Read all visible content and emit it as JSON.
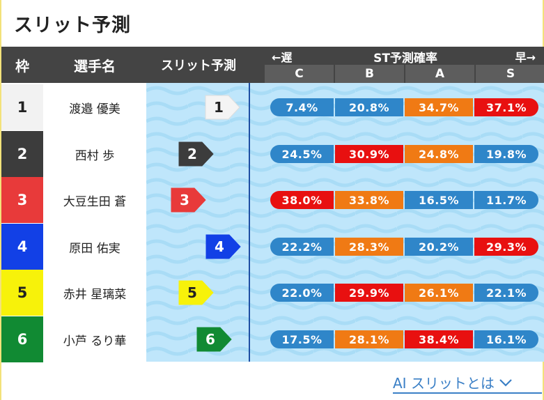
{
  "title": "スリット予測",
  "header": {
    "waku": "枠",
    "name": "選手名",
    "slit": "スリット予測",
    "st_left": "←遅",
    "st_center": "ST予測確率",
    "st_right": "早→",
    "cols": [
      "C",
      "B",
      "A",
      "S"
    ]
  },
  "colors": {
    "blue": "#2f86c9",
    "orange": "#f07a14",
    "red": "#e81010"
  },
  "rows": [
    {
      "waku": "1",
      "name": "渡邉 優美",
      "badge": "1",
      "waku_bg": "#f2f2f2",
      "waku_fg": "#222222",
      "C": "7.4%",
      "B": "20.8%",
      "A": "34.7%",
      "S": "37.1%"
    },
    {
      "waku": "2",
      "name": "西村 歩",
      "badge": "2",
      "waku_bg": "#3c3c3c",
      "waku_fg": "#ffffff",
      "C": "24.5%",
      "B": "30.9%",
      "A": "24.8%",
      "S": "19.8%"
    },
    {
      "waku": "3",
      "name": "大豆生田 蒼",
      "badge": "3",
      "waku_bg": "#e83a3a",
      "waku_fg": "#ffffff",
      "C": "38.0%",
      "B": "33.8%",
      "A": "16.5%",
      "S": "11.7%"
    },
    {
      "waku": "4",
      "name": "原田 佑実",
      "badge": "4",
      "waku_bg": "#1240e6",
      "waku_fg": "#ffffff",
      "C": "22.2%",
      "B": "28.3%",
      "A": "20.2%",
      "S": "29.3%"
    },
    {
      "waku": "5",
      "name": "赤井 星璃菜",
      "badge": "5",
      "waku_bg": "#f7f20a",
      "waku_fg": "#222222",
      "C": "22.0%",
      "B": "29.9%",
      "A": "26.1%",
      "S": "22.1%"
    },
    {
      "waku": "6",
      "name": "小芦 るり華",
      "badge": "6",
      "waku_bg": "#118a33",
      "waku_fg": "#ffffff",
      "C": "17.5%",
      "B": "28.1%",
      "A": "38.4%",
      "S": "16.1%"
    }
  ],
  "footer_link": "AI スリットとは"
}
